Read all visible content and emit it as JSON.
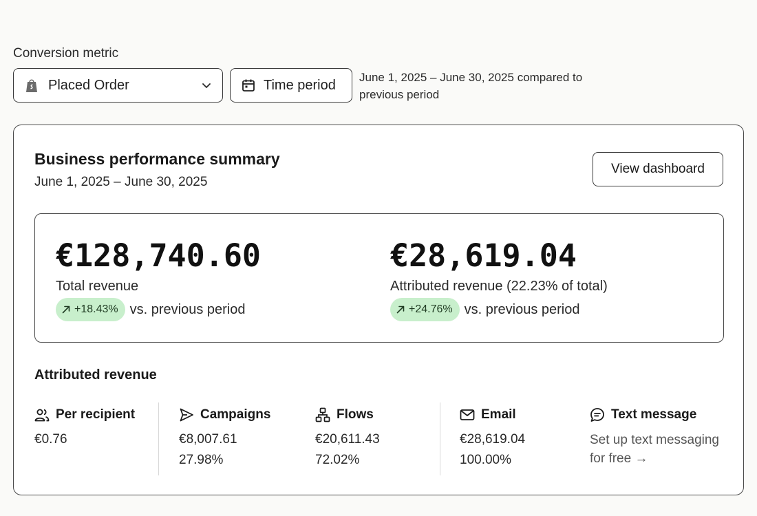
{
  "conversion": {
    "label": "Conversion metric",
    "selected": "Placed Order",
    "time_period_label": "Time period",
    "period_description": "June 1, 2025 – June 30, 2025 compared to previous period"
  },
  "summary": {
    "title": "Business performance summary",
    "date_range": "June 1, 2025 – June 30, 2025",
    "view_dashboard_label": "View dashboard",
    "total": {
      "amount": "€128,740.60",
      "label": "Total revenue",
      "change": "+18.43%",
      "vs": "vs. previous period"
    },
    "attributed": {
      "amount": "€28,619.04",
      "label": "Attributed revenue (22.23% of total)",
      "change": "+24.76%",
      "vs": "vs. previous period"
    }
  },
  "attributed_revenue": {
    "title": "Attributed revenue",
    "per_recipient": {
      "name": "Per recipient",
      "value": "€0.76",
      "icon": "users-icon"
    },
    "campaigns": {
      "name": "Campaigns",
      "value": "€8,007.61",
      "percent": "27.98%",
      "icon": "send-icon"
    },
    "flows": {
      "name": "Flows",
      "value": "€20,611.43",
      "percent": "72.02%",
      "icon": "flow-icon"
    },
    "email": {
      "name": "Email",
      "value": "€28,619.04",
      "percent": "100.00%",
      "icon": "mail-icon"
    },
    "text_message": {
      "name": "Text message",
      "link": "Set up text messaging for free →",
      "icon": "chat-icon"
    }
  },
  "colors": {
    "pill_bg": "#c8efcc",
    "border": "#3a3a3a",
    "page_bg": "#fafaf8"
  }
}
